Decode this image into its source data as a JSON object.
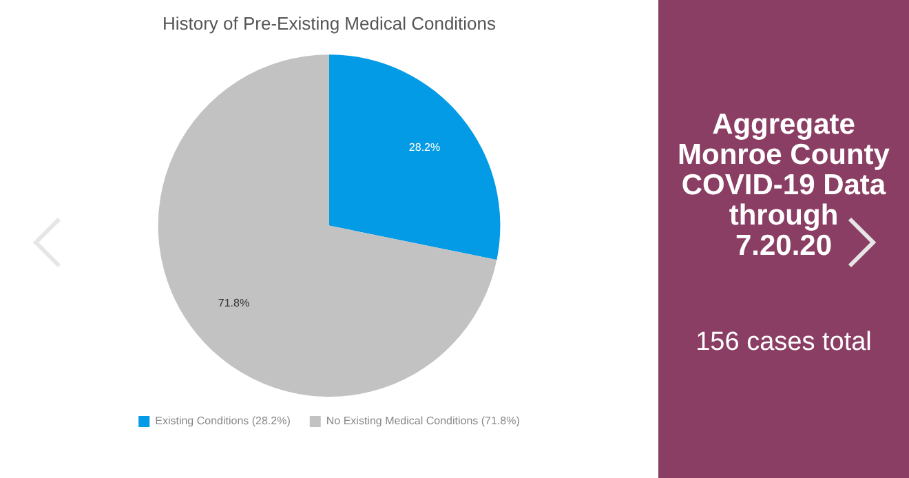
{
  "chart_data": {
    "type": "pie",
    "title": "History of Pre-Existing Medical Conditions",
    "categories": [
      "Existing Conditions (28.2%)",
      "No Existing Medical Conditions (71.8%)"
    ],
    "values": [
      28.2,
      71.8
    ],
    "colors": [
      "#039be5",
      "#c2c2c2"
    ],
    "value_labels": [
      "28.2%",
      "71.8%"
    ],
    "legend": "bottom",
    "annotations": [
      "Aggregate Monroe County COVID-19 Data through 7.20.20",
      "156 cases total"
    ]
  }
}
